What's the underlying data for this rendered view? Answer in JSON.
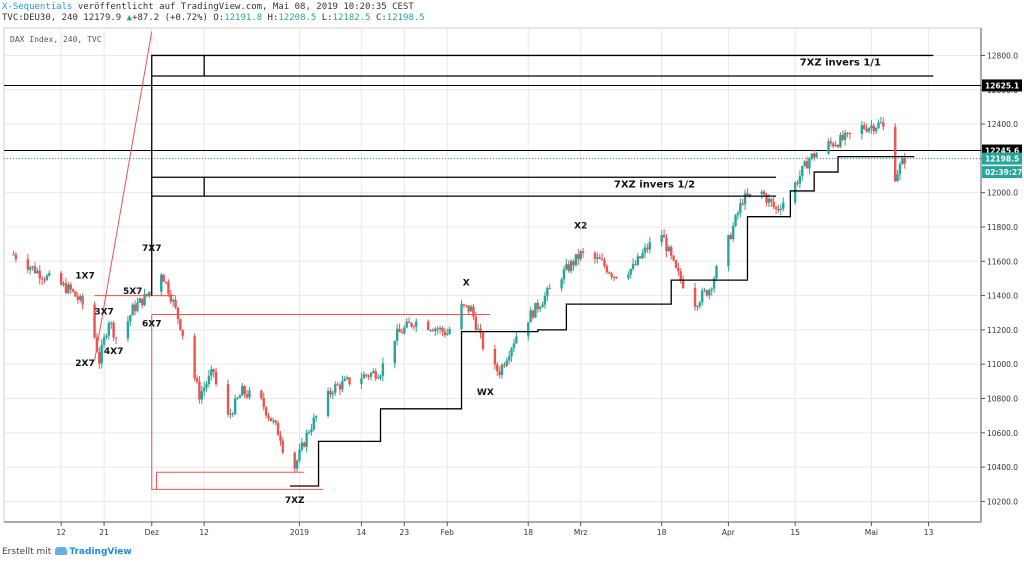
{
  "header": {
    "user": "X-Sequentials",
    "published": " veröffentlicht auf TradingView.com, Mai 08, 2019 10:20:35 CEST",
    "symbol": "TVC:DEU30, 240 12179.9",
    "change_arrow": "▲",
    "change": "+87.2 (+0.72%)",
    "o_label": " O:",
    "o_value": "12191.8",
    "h_label": " H:",
    "h_value": "12208.5",
    "l_label": " L:",
    "l_value": "12182.5",
    "c_label": " C:",
    "c_value": "12198.5"
  },
  "legend_text": "DAX Index, 240, TVC",
  "footer": {
    "created_with": "Erstellt mit",
    "brand": "TradingView"
  },
  "colors": {
    "up": "#26a69a",
    "down": "#ef5350",
    "red_line": "#ef5350",
    "black": "#000000",
    "grid": "#e8e8e8",
    "dotted": "#26a69a",
    "price_badge": "#26a69a",
    "label_badge": "#000000"
  },
  "chart_data": {
    "type": "candlestick",
    "title": "DAX Index, 240, TVC",
    "ylim": [
      10080,
      12960
    ],
    "y_ticks": [
      10200,
      10400,
      10600,
      10800,
      11000,
      11200,
      11400,
      11600,
      11800,
      12000,
      12200,
      12400,
      12600,
      12800
    ],
    "y_tick_labels": [
      "10200.0",
      "10400.0",
      "10600.0",
      "10800.0",
      "11000.0",
      "11200.0",
      "11400.0",
      "11600.0",
      "11800.0",
      "12000.0",
      "12200.0",
      "12400.0",
      "12600.0",
      "12800.0"
    ],
    "x_tick_labels": [
      "12",
      "21",
      "Dez",
      "12",
      "2019",
      "14",
      "23",
      "Feb",
      "18",
      "Mrz",
      "18",
      "Apr",
      "15",
      "Mai",
      "13"
    ],
    "x_tick_dates": [
      "2018-11-12",
      "2018-11-21",
      "2018-12-01",
      "2018-12-12",
      "2019-01-01",
      "2019-01-14",
      "2019-01-23",
      "2019-02-01",
      "2019-02-18",
      "2019-03-01",
      "2019-03-18",
      "2019-04-01",
      "2019-04-15",
      "2019-05-01",
      "2019-05-13"
    ],
    "price_labels": [
      {
        "value": 12625.1,
        "text": "12625.1",
        "style": "black"
      },
      {
        "value": 12245.6,
        "text": "12245.6",
        "style": "black"
      },
      {
        "value": 12198.5,
        "text": "12198.5",
        "style": "green"
      },
      {
        "value": 12120,
        "text": "02:39:27",
        "style": "green"
      }
    ],
    "horizontal_lines": [
      {
        "value": 12625.1
      },
      {
        "value": 12245.6
      },
      {
        "value": 12198.5,
        "style": "dotted"
      }
    ],
    "price_path": [
      [
        "2018-11-02",
        11640
      ],
      [
        "2018-11-08",
        11520
      ],
      [
        "2018-11-14",
        11430
      ],
      [
        "2018-11-18",
        11300
      ],
      [
        "2018-11-20",
        11020
      ],
      [
        "2018-11-22",
        11260
      ],
      [
        "2018-11-24",
        11120
      ],
      [
        "2018-11-27",
        11320
      ],
      [
        "2018-11-30",
        11400
      ],
      [
        "2018-12-03",
        11540
      ],
      [
        "2018-12-05",
        11400
      ],
      [
        "2018-12-07",
        11230
      ],
      [
        "2018-12-11",
        10820
      ],
      [
        "2018-12-14",
        10960
      ],
      [
        "2018-12-16",
        10640
      ],
      [
        "2018-12-20",
        10840
      ],
      [
        "2018-12-24",
        10780
      ],
      [
        "2018-12-28",
        10580
      ],
      [
        "2018-12-30",
        10330
      ],
      [
        "2019-01-03",
        10620
      ],
      [
        "2019-01-08",
        10860
      ],
      [
        "2019-01-13",
        10920
      ],
      [
        "2019-01-18",
        10960
      ],
      [
        "2019-01-21",
        11160
      ],
      [
        "2019-01-25",
        11250
      ],
      [
        "2019-01-29",
        11220
      ],
      [
        "2019-02-01",
        11180
      ],
      [
        "2019-02-04",
        11330
      ],
      [
        "2019-02-06",
        11320
      ],
      [
        "2019-02-10",
        10980
      ],
      [
        "2019-02-12",
        10960
      ],
      [
        "2019-02-16",
        11200
      ],
      [
        "2019-02-20",
        11340
      ],
      [
        "2019-02-25",
        11520
      ],
      [
        "2019-03-01",
        11640
      ],
      [
        "2019-03-05",
        11600
      ],
      [
        "2019-03-08",
        11520
      ],
      [
        "2019-03-12",
        11560
      ],
      [
        "2019-03-15",
        11680
      ],
      [
        "2019-03-18",
        11760
      ],
      [
        "2019-03-21",
        11540
      ],
      [
        "2019-03-25",
        11360
      ],
      [
        "2019-03-28",
        11440
      ],
      [
        "2019-04-01",
        11720
      ],
      [
        "2019-04-04",
        11960
      ],
      [
        "2019-04-08",
        12000
      ],
      [
        "2019-04-11",
        11900
      ],
      [
        "2019-04-14",
        12000
      ],
      [
        "2019-04-18",
        12200
      ],
      [
        "2019-04-22",
        12280
      ],
      [
        "2019-04-26",
        12320
      ],
      [
        "2019-04-29",
        12380
      ],
      [
        "2019-05-03",
        12400
      ],
      [
        "2019-05-05",
        12300
      ],
      [
        "2019-05-06",
        12100
      ],
      [
        "2019-05-08",
        12198
      ]
    ],
    "black_lines": [
      {
        "points": [
          [
            "2018-12-01",
            11400
          ],
          [
            "2018-12-01",
            12800
          ],
          [
            "2019-05-14",
            12800
          ]
        ]
      },
      {
        "points": [
          [
            "2018-12-01",
            12680
          ],
          [
            "2019-05-14",
            12680
          ]
        ]
      },
      {
        "points": [
          [
            "2018-12-12",
            12800
          ],
          [
            "2018-12-12",
            12680
          ]
        ]
      },
      {
        "points": [
          [
            "2018-12-01",
            12090
          ],
          [
            "2019-04-11",
            12090
          ]
        ]
      },
      {
        "points": [
          [
            "2018-12-01",
            11980
          ],
          [
            "2019-04-11",
            11980
          ]
        ]
      },
      {
        "points": [
          [
            "2018-12-12",
            12090
          ],
          [
            "2018-12-12",
            11980
          ]
        ]
      },
      {
        "points": [
          [
            "2018-12-30",
            10290
          ],
          [
            "2019-01-05",
            10290
          ],
          [
            "2019-01-05",
            10550
          ],
          [
            "2019-01-18",
            10550
          ],
          [
            "2019-01-18",
            10740
          ],
          [
            "2019-02-04",
            10740
          ],
          [
            "2019-02-04",
            11190
          ],
          [
            "2019-02-20",
            11190
          ],
          [
            "2019-02-20",
            11200
          ],
          [
            "2019-02-26",
            11200
          ],
          [
            "2019-02-26",
            11350
          ],
          [
            "2019-03-20",
            11350
          ],
          [
            "2019-03-20",
            11490
          ],
          [
            "2019-04-05",
            11490
          ],
          [
            "2019-04-05",
            11860
          ],
          [
            "2019-04-14",
            11860
          ],
          [
            "2019-04-14",
            12010
          ],
          [
            "2019-04-19",
            12010
          ],
          [
            "2019-04-19",
            12120
          ],
          [
            "2019-04-24",
            12120
          ],
          [
            "2019-04-24",
            12210
          ],
          [
            "2019-05-10",
            12210
          ]
        ]
      }
    ],
    "red_lines": [
      {
        "points": [
          [
            "2018-11-19",
            11020
          ],
          [
            "2018-12-01",
            12940
          ]
        ]
      },
      {
        "points": [
          [
            "2018-11-19",
            11400
          ],
          [
            "2018-12-06",
            11400
          ]
        ]
      },
      {
        "points": [
          [
            "2018-12-01",
            11290
          ],
          [
            "2019-02-10",
            11290
          ]
        ]
      },
      {
        "points": [
          [
            "2018-12-01",
            11290
          ],
          [
            "2018-12-01",
            10270
          ]
        ]
      },
      {
        "points": [
          [
            "2018-12-01",
            10270
          ],
          [
            "2019-01-06",
            10270
          ]
        ]
      },
      {
        "points": [
          [
            "2018-12-02",
            10370
          ],
          [
            "2019-01-02",
            10370
          ]
        ]
      },
      {
        "points": [
          [
            "2018-12-02",
            10370
          ],
          [
            "2018-12-02",
            10270
          ]
        ]
      }
    ],
    "annotations": [
      {
        "text": "1X7",
        "date": "2018-11-17",
        "value": 11500
      },
      {
        "text": "3X7",
        "date": "2018-11-21",
        "value": 11290
      },
      {
        "text": "2X7",
        "date": "2018-11-17",
        "value": 10990
      },
      {
        "text": "4X7",
        "date": "2018-11-23",
        "value": 11060
      },
      {
        "text": "5X7",
        "date": "2018-11-27",
        "value": 11410
      },
      {
        "text": "6X7",
        "date": "2018-12-01",
        "value": 11220
      },
      {
        "text": "7X7",
        "date": "2018-12-01",
        "value": 11660
      },
      {
        "text": "X",
        "date": "2019-02-05",
        "value": 11460
      },
      {
        "text": "WX",
        "date": "2019-02-09",
        "value": 10820
      },
      {
        "text": "X2",
        "date": "2019-03-01",
        "value": 11790
      },
      {
        "text": "7XZ",
        "date": "2018-12-31",
        "value": 10190
      },
      {
        "text": "7XZ invers 1/2",
        "date": "2019-03-25",
        "value": 12030
      },
      {
        "text": "7XZ invers 1/1",
        "date": "2019-05-03",
        "value": 12740
      }
    ]
  }
}
